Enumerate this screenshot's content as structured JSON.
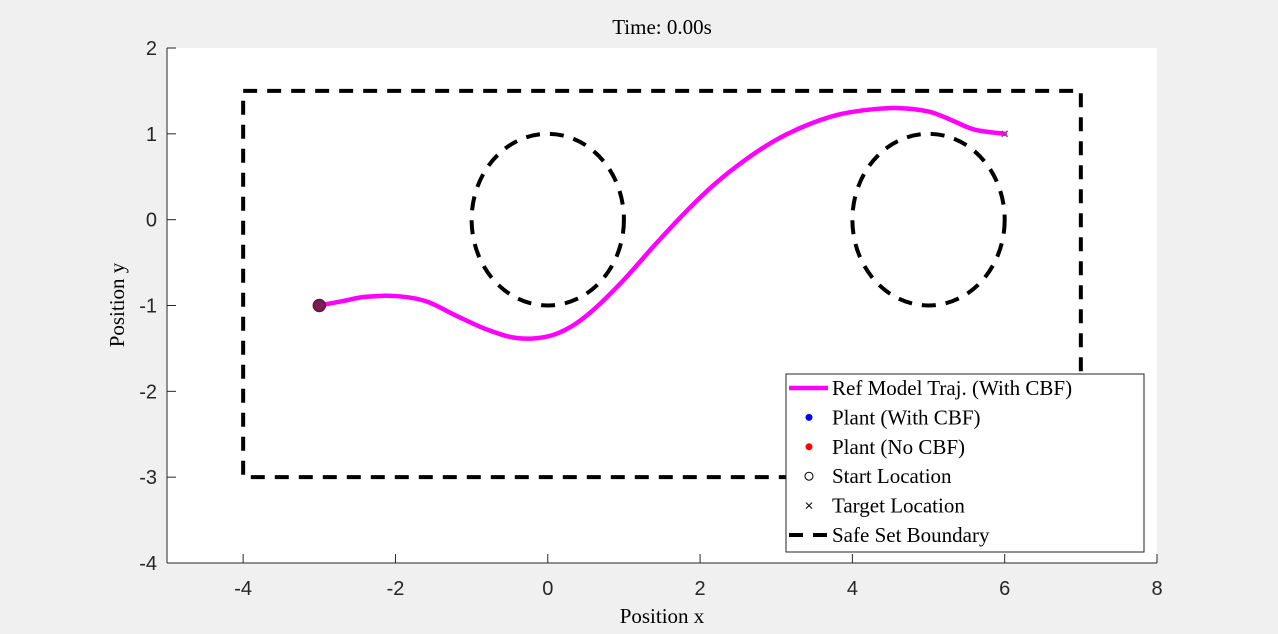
{
  "chart_data": {
    "type": "line",
    "title": "Time: 0.00s",
    "xlabel": "Position x",
    "ylabel": "Position y",
    "xlim": [
      -5,
      8
    ],
    "ylim": [
      -4,
      2
    ],
    "xticks": [
      -4,
      -2,
      0,
      2,
      4,
      6,
      8
    ],
    "yticks": [
      -4,
      -3,
      -2,
      -1,
      0,
      1,
      2
    ],
    "xtick_labels": [
      "-4",
      "-2",
      "0",
      "2",
      "4",
      "6",
      "8"
    ],
    "ytick_labels": [
      "-4",
      "-3",
      "-2",
      "-1",
      "0",
      "1",
      "2"
    ],
    "grid": false,
    "legend_position": "bottom-right",
    "series": [
      {
        "name": "Ref Model Traj. (With CBF)",
        "color": "#ff00ff",
        "x": [
          -3.0,
          -2.7,
          -2.4,
          -2.0,
          -1.6,
          -1.2,
          -0.8,
          -0.4,
          0.0,
          0.3,
          0.6,
          1.0,
          1.4,
          1.8,
          2.2,
          2.6,
          3.0,
          3.4,
          3.8,
          4.2,
          4.6,
          5.0,
          5.3,
          5.6,
          6.0
        ],
        "y": [
          -1.0,
          -0.95,
          -0.9,
          -0.89,
          -0.95,
          -1.12,
          -1.28,
          -1.38,
          -1.36,
          -1.25,
          -1.05,
          -0.7,
          -0.3,
          0.08,
          0.42,
          0.7,
          0.93,
          1.1,
          1.22,
          1.28,
          1.3,
          1.26,
          1.16,
          1.05,
          1.0
        ]
      },
      {
        "name": "Plant (With CBF)",
        "color": "#0000ff",
        "x": [
          -3
        ],
        "y": [
          -1
        ]
      },
      {
        "name": "Plant (No CBF)",
        "color": "#ff0000",
        "x": [
          -3
        ],
        "y": [
          -1
        ]
      },
      {
        "name": "Start Location",
        "color": "#000000",
        "x": [
          -3
        ],
        "y": [
          -1
        ]
      },
      {
        "name": "Target Location",
        "color": "#000000",
        "x": [
          6
        ],
        "y": [
          1
        ]
      },
      {
        "name": "Safe Set Boundary",
        "color": "#000000",
        "rectangle": {
          "x": [
            -4,
            7
          ],
          "y": [
            -3,
            1.5
          ]
        },
        "circles": [
          {
            "center": [
              0,
              0
            ],
            "radius": 1
          },
          {
            "center": [
              5,
              0
            ],
            "radius": 1
          }
        ]
      }
    ]
  },
  "legend": {
    "items": [
      {
        "label": "Ref Model Traj. (With CBF)",
        "marker": "line",
        "color": "#ff00ff"
      },
      {
        "label": "Plant (With CBF)",
        "marker": "dot",
        "color": "#0000ff"
      },
      {
        "label": "Plant (No CBF)",
        "marker": "dot",
        "color": "#ff0000"
      },
      {
        "label": "Start Location",
        "marker": "circle",
        "color": "#000000"
      },
      {
        "label": "Target Location",
        "marker": "x",
        "color": "#000000"
      },
      {
        "label": "Safe Set Boundary",
        "marker": "dash",
        "color": "#000000"
      }
    ]
  }
}
